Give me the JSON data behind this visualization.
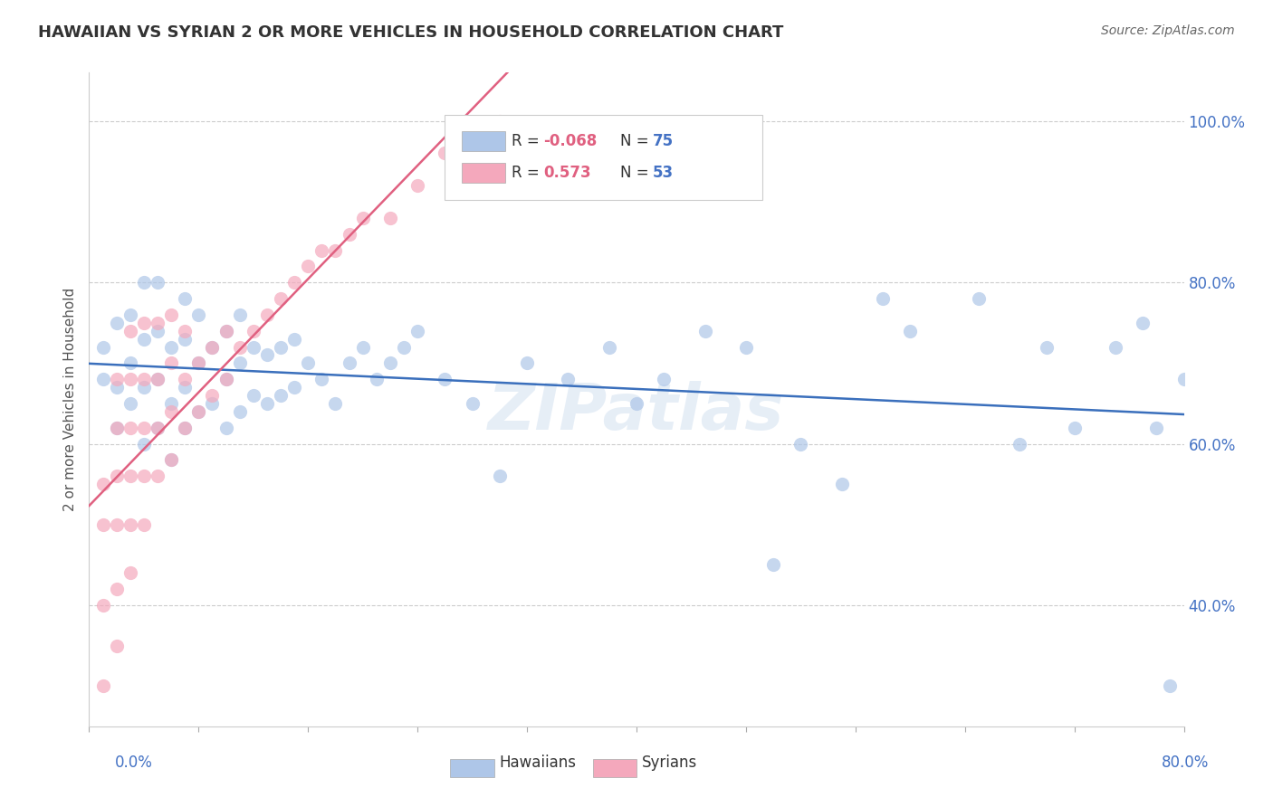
{
  "title": "HAWAIIAN VS SYRIAN 2 OR MORE VEHICLES IN HOUSEHOLD CORRELATION CHART",
  "source": "Source: ZipAtlas.com",
  "ylabel": "2 or more Vehicles in Household",
  "yticks": [
    "40.0%",
    "60.0%",
    "80.0%",
    "100.0%"
  ],
  "ytick_vals": [
    0.4,
    0.6,
    0.8,
    1.0
  ],
  "xlim": [
    0.0,
    0.8
  ],
  "ylim": [
    0.25,
    1.06
  ],
  "hawaiian_color": "#aec6e8",
  "syrian_color": "#f4a8bc",
  "hawaiian_line_color": "#3a6fbc",
  "syrian_line_color": "#e06080",
  "watermark": "ZIPatlas",
  "hawaiian_R": -0.068,
  "hawaiian_N": 75,
  "syrian_R": 0.573,
  "syrian_N": 53,
  "hawaiian_x": [
    0.01,
    0.01,
    0.02,
    0.02,
    0.02,
    0.03,
    0.03,
    0.03,
    0.04,
    0.04,
    0.04,
    0.04,
    0.05,
    0.05,
    0.05,
    0.05,
    0.06,
    0.06,
    0.06,
    0.07,
    0.07,
    0.07,
    0.07,
    0.08,
    0.08,
    0.08,
    0.09,
    0.09,
    0.1,
    0.1,
    0.1,
    0.11,
    0.11,
    0.11,
    0.12,
    0.12,
    0.13,
    0.13,
    0.14,
    0.14,
    0.15,
    0.15,
    0.16,
    0.17,
    0.18,
    0.19,
    0.2,
    0.21,
    0.22,
    0.23,
    0.24,
    0.26,
    0.28,
    0.3,
    0.32,
    0.35,
    0.38,
    0.4,
    0.42,
    0.45,
    0.48,
    0.5,
    0.52,
    0.55,
    0.58,
    0.6,
    0.65,
    0.68,
    0.7,
    0.72,
    0.75,
    0.77,
    0.78,
    0.79,
    0.8
  ],
  "hawaiian_y": [
    0.68,
    0.72,
    0.62,
    0.67,
    0.75,
    0.65,
    0.7,
    0.76,
    0.6,
    0.67,
    0.73,
    0.8,
    0.62,
    0.68,
    0.74,
    0.8,
    0.58,
    0.65,
    0.72,
    0.62,
    0.67,
    0.73,
    0.78,
    0.64,
    0.7,
    0.76,
    0.65,
    0.72,
    0.62,
    0.68,
    0.74,
    0.64,
    0.7,
    0.76,
    0.66,
    0.72,
    0.65,
    0.71,
    0.66,
    0.72,
    0.67,
    0.73,
    0.7,
    0.68,
    0.65,
    0.7,
    0.72,
    0.68,
    0.7,
    0.72,
    0.74,
    0.68,
    0.65,
    0.56,
    0.7,
    0.68,
    0.72,
    0.65,
    0.68,
    0.74,
    0.72,
    0.45,
    0.6,
    0.55,
    0.78,
    0.74,
    0.78,
    0.6,
    0.72,
    0.62,
    0.72,
    0.75,
    0.62,
    0.3,
    0.68
  ],
  "syrian_x": [
    0.01,
    0.01,
    0.01,
    0.01,
    0.02,
    0.02,
    0.02,
    0.02,
    0.02,
    0.02,
    0.03,
    0.03,
    0.03,
    0.03,
    0.03,
    0.03,
    0.04,
    0.04,
    0.04,
    0.04,
    0.04,
    0.05,
    0.05,
    0.05,
    0.05,
    0.06,
    0.06,
    0.06,
    0.06,
    0.07,
    0.07,
    0.07,
    0.08,
    0.08,
    0.09,
    0.09,
    0.1,
    0.1,
    0.11,
    0.12,
    0.13,
    0.14,
    0.15,
    0.16,
    0.17,
    0.18,
    0.19,
    0.2,
    0.22,
    0.24,
    0.26,
    0.28,
    0.3
  ],
  "syrian_y": [
    0.3,
    0.4,
    0.5,
    0.55,
    0.35,
    0.42,
    0.5,
    0.56,
    0.62,
    0.68,
    0.44,
    0.5,
    0.56,
    0.62,
    0.68,
    0.74,
    0.5,
    0.56,
    0.62,
    0.68,
    0.75,
    0.56,
    0.62,
    0.68,
    0.75,
    0.58,
    0.64,
    0.7,
    0.76,
    0.62,
    0.68,
    0.74,
    0.64,
    0.7,
    0.66,
    0.72,
    0.68,
    0.74,
    0.72,
    0.74,
    0.76,
    0.78,
    0.8,
    0.82,
    0.84,
    0.84,
    0.86,
    0.88,
    0.88,
    0.92,
    0.96,
    0.98,
    1.0
  ]
}
